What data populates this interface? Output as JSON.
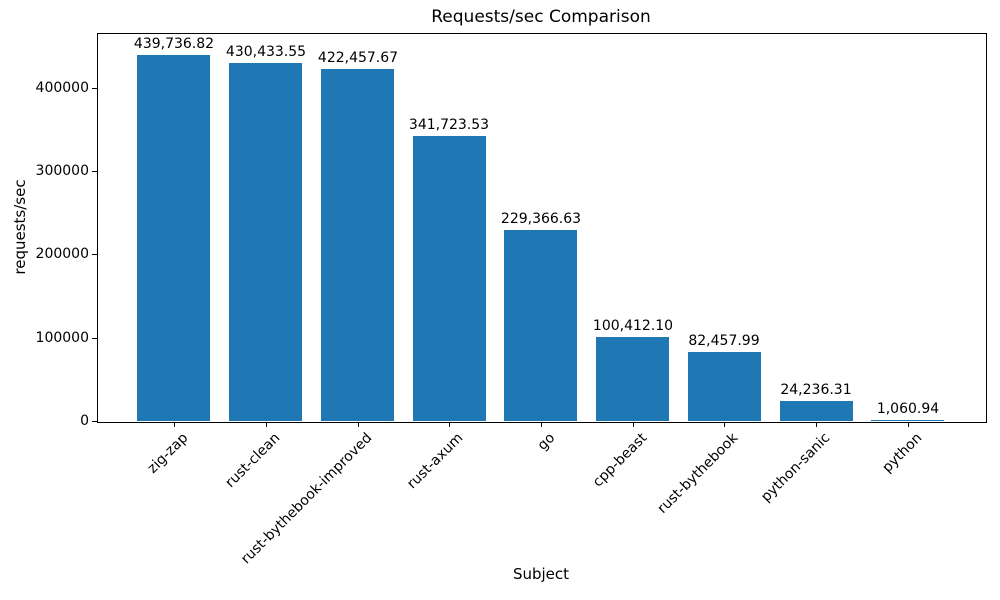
{
  "chart_data": {
    "type": "bar",
    "title": "Requests/sec Comparison",
    "xlabel": "Subject",
    "ylabel": "requests/sec",
    "categories": [
      "zig-zap",
      "rust-clean",
      "rust-bythebook-improved",
      "rust-axum",
      "go",
      "cpp-beast",
      "rust-bythebook",
      "python-sanic",
      "python"
    ],
    "values": [
      439736.82,
      430433.55,
      422457.67,
      341723.53,
      229366.63,
      100412.1,
      82457.99,
      24236.31,
      1060.94
    ],
    "value_labels": [
      "439,736.82",
      "430,433.55",
      "422,457.67",
      "341,723.53",
      "229,366.63",
      "100,412.10",
      "82,457.99",
      "24,236.31",
      "1,060.94"
    ],
    "bar_color": "#1f77b4",
    "text_color": "#000000",
    "ylim": [
      0,
      466000
    ],
    "yticks": [
      0,
      100000,
      200000,
      300000,
      400000
    ],
    "ytick_labels": [
      "0",
      "100000",
      "200000",
      "300000",
      "400000"
    ],
    "grid": false,
    "legend": "none"
  }
}
